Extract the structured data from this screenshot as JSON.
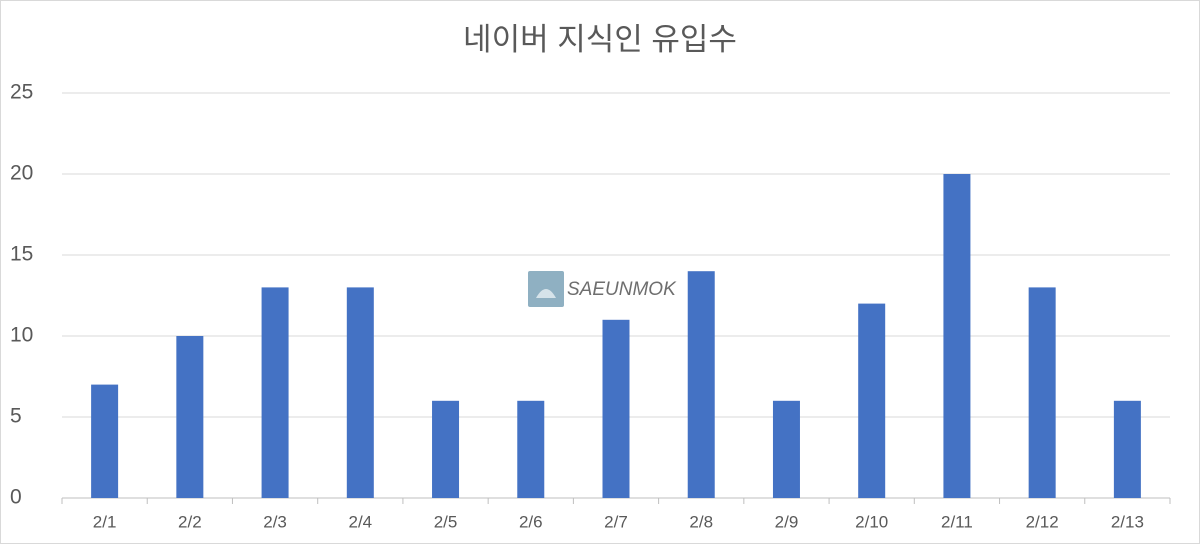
{
  "chart_data": {
    "type": "bar",
    "title": "네이버 지식인 유입수",
    "watermark": "SAEUNMOK",
    "categories": [
      "2/1",
      "2/2",
      "2/3",
      "2/4",
      "2/5",
      "2/6",
      "2/7",
      "2/8",
      "2/9",
      "2/10",
      "2/11",
      "2/12",
      "2/13"
    ],
    "values": [
      7,
      10,
      13,
      13,
      6,
      6,
      11,
      14,
      6,
      12,
      20,
      13,
      6
    ],
    "color": "#4472c4",
    "ylim": [
      0,
      25
    ],
    "yticks": [
      0,
      5,
      10,
      15,
      20,
      25
    ],
    "grid": true
  }
}
